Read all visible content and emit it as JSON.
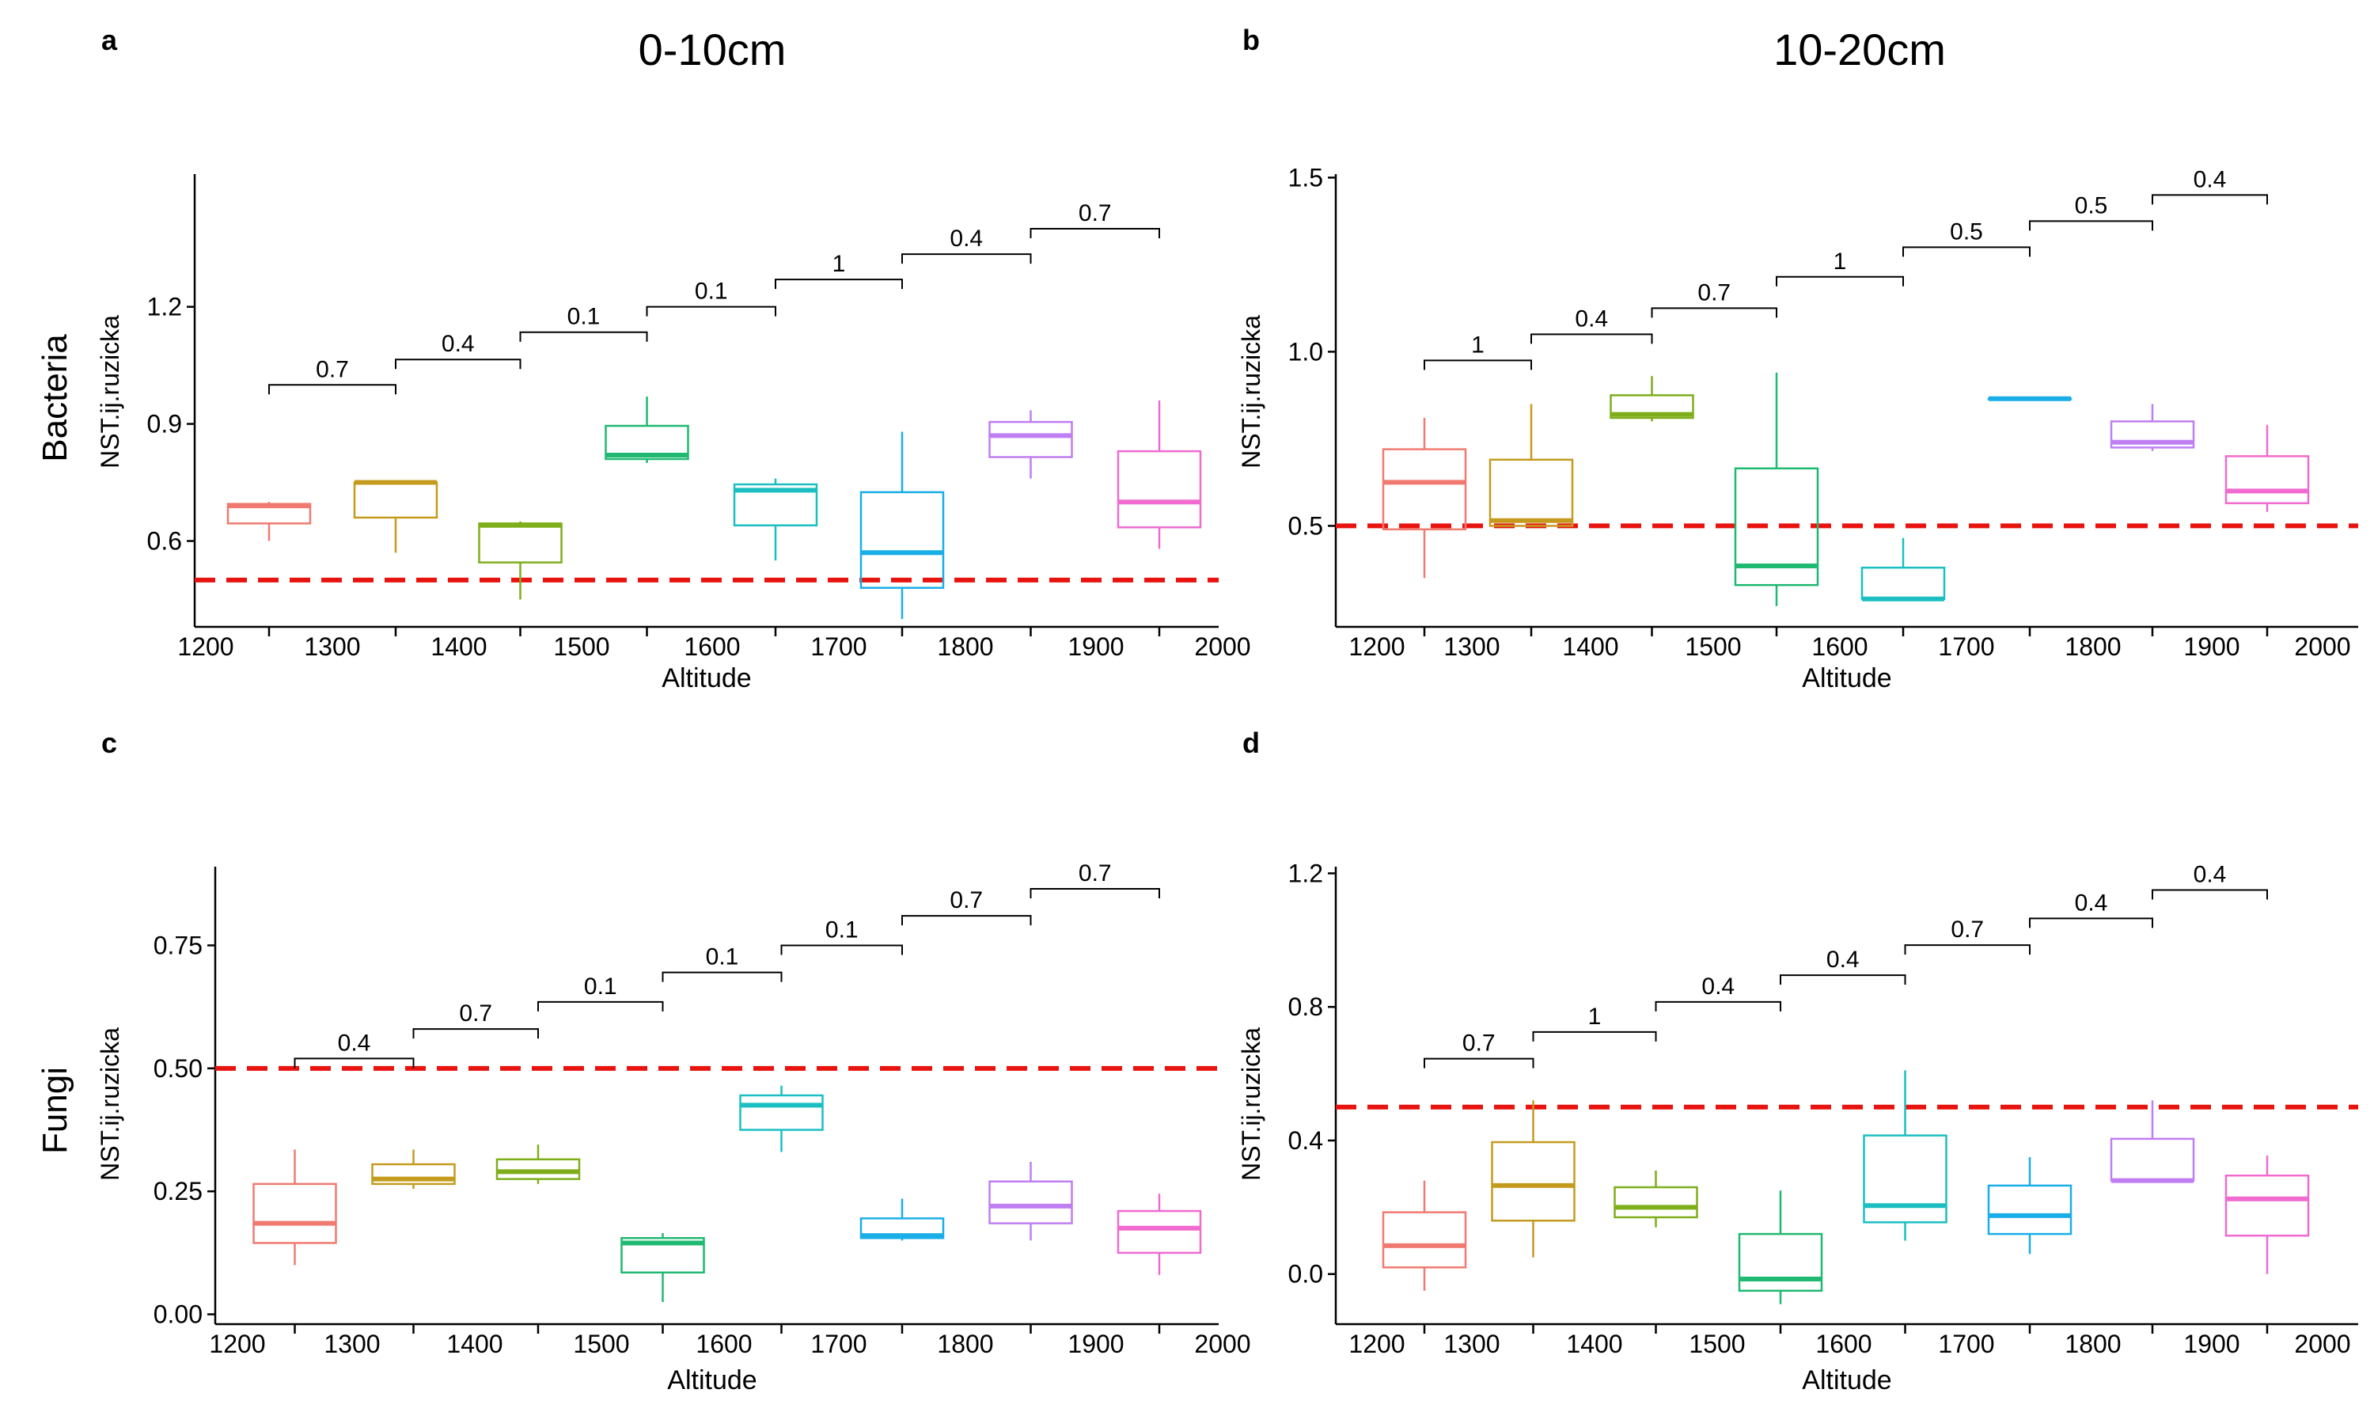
{
  "figure": {
    "column_titles": [
      "0-10cm",
      "10-20cm"
    ],
    "row_titles": [
      "Bacteria",
      "Fungi"
    ],
    "reference_line_color": "#e8130e"
  },
  "chart_data": [
    {
      "panel": "a",
      "type": "boxplot",
      "xlabel": "Altitude",
      "ylabel": "NST.ij.ruzicka",
      "categories": [
        "1200",
        "1300",
        "1400",
        "1500",
        "1600",
        "1700",
        "1800",
        "1900",
        "2000"
      ],
      "ylim": [
        0.38,
        1.54
      ],
      "yticks": [
        0.6,
        0.9,
        1.2
      ],
      "ytick_labels": [
        "0.6",
        "0.9",
        "1.2"
      ],
      "reference_line": 0.5,
      "colors": [
        "#f07a70",
        "#c49b1f",
        "#7fae1b",
        "#1fb971",
        "#1bbfc2",
        "#19aee8",
        "#bf7ef2",
        "#f06ad0"
      ],
      "boxes": [
        {
          "altitude": "1250",
          "min": 0.6,
          "q1": 0.645,
          "median": 0.69,
          "q3": 0.695,
          "max": 0.7
        },
        {
          "altitude": "1350",
          "min": 0.57,
          "q1": 0.66,
          "median": 0.75,
          "q3": 0.75,
          "max": 0.75
        },
        {
          "altitude": "1450",
          "min": 0.45,
          "q1": 0.545,
          "median": 0.64,
          "q3": 0.645,
          "max": 0.65
        },
        {
          "altitude": "1550",
          "min": 0.8,
          "q1": 0.81,
          "median": 0.82,
          "q3": 0.895,
          "max": 0.97
        },
        {
          "altitude": "1650",
          "min": 0.55,
          "q1": 0.64,
          "median": 0.73,
          "q3": 0.745,
          "max": 0.76
        },
        {
          "altitude": "1750",
          "min": 0.4,
          "q1": 0.48,
          "median": 0.57,
          "q3": 0.725,
          "max": 0.88
        },
        {
          "altitude": "1850",
          "min": 0.76,
          "q1": 0.815,
          "median": 0.87,
          "q3": 0.905,
          "max": 0.935
        },
        {
          "altitude": "1950",
          "min": 0.58,
          "q1": 0.635,
          "median": 0.7,
          "q3": 0.83,
          "max": 0.96
        }
      ],
      "comparisons": [
        {
          "from": 0,
          "to": 1,
          "y": 1.0,
          "label": "0.7"
        },
        {
          "from": 1,
          "to": 2,
          "y": 1.065,
          "label": "0.4"
        },
        {
          "from": 2,
          "to": 3,
          "y": 1.135,
          "label": "0.1"
        },
        {
          "from": 3,
          "to": 4,
          "y": 1.2,
          "label": "0.1"
        },
        {
          "from": 4,
          "to": 5,
          "y": 1.27,
          "label": "1"
        },
        {
          "from": 5,
          "to": 6,
          "y": 1.335,
          "label": "0.4"
        },
        {
          "from": 6,
          "to": 7,
          "y": 1.4,
          "label": "0.7"
        }
      ]
    },
    {
      "panel": "b",
      "type": "boxplot",
      "xlabel": "Altitude",
      "ylabel": "NST.ij.ruzicka",
      "categories": [
        "1200",
        "1300",
        "1400",
        "1500",
        "1600",
        "1700",
        "1800",
        "1900",
        "2000"
      ],
      "ylim": [
        0.21,
        1.51
      ],
      "yticks": [
        0.5,
        1.0,
        1.5
      ],
      "ytick_labels": [
        "0.5",
        "1.0",
        "1.5"
      ],
      "reference_line": 0.5,
      "colors": [
        "#f07a70",
        "#c49b1f",
        "#7fae1b",
        "#1fb971",
        "#1bbfc2",
        "#19aee8",
        "#bf7ef2",
        "#f06ad0"
      ],
      "boxes": [
        {
          "altitude": "1250",
          "min": 0.35,
          "q1": 0.49,
          "median": 0.625,
          "q3": 0.72,
          "max": 0.81
        },
        {
          "altitude": "1350",
          "min": 0.5,
          "q1": 0.5,
          "median": 0.515,
          "q3": 0.69,
          "max": 0.85
        },
        {
          "altitude": "1450",
          "min": 0.8,
          "q1": 0.81,
          "median": 0.82,
          "q3": 0.875,
          "max": 0.93
        },
        {
          "altitude": "1550",
          "min": 0.27,
          "q1": 0.33,
          "median": 0.385,
          "q3": 0.665,
          "max": 0.94
        },
        {
          "altitude": "1650",
          "min": 0.29,
          "q1": 0.29,
          "median": 0.29,
          "q3": 0.38,
          "max": 0.465
        },
        {
          "altitude": "1750",
          "min": 0.865,
          "q1": 0.865,
          "median": 0.865,
          "q3": 0.865,
          "max": 0.865
        },
        {
          "altitude": "1850",
          "min": 0.715,
          "q1": 0.725,
          "median": 0.74,
          "q3": 0.8,
          "max": 0.85
        },
        {
          "altitude": "1950",
          "min": 0.54,
          "q1": 0.565,
          "median": 0.6,
          "q3": 0.7,
          "max": 0.79
        }
      ],
      "comparisons": [
        {
          "from": 0,
          "to": 1,
          "y": 0.975,
          "label": "1"
        },
        {
          "from": 1,
          "to": 2,
          "y": 1.05,
          "label": "0.4"
        },
        {
          "from": 2,
          "to": 3,
          "y": 1.125,
          "label": "0.7"
        },
        {
          "from": 3,
          "to": 4,
          "y": 1.215,
          "label": "1"
        },
        {
          "from": 4,
          "to": 5,
          "y": 1.3,
          "label": "0.5"
        },
        {
          "from": 5,
          "to": 6,
          "y": 1.375,
          "label": "0.5"
        },
        {
          "from": 6,
          "to": 7,
          "y": 1.45,
          "label": "0.4"
        }
      ]
    },
    {
      "panel": "c",
      "type": "boxplot",
      "xlabel": "Altitude",
      "ylabel": "NST.ij.ruzicka",
      "categories": [
        "1200",
        "1300",
        "1400",
        "1500",
        "1600",
        "1700",
        "1800",
        "1900",
        "2000"
      ],
      "ylim": [
        -0.02,
        0.91
      ],
      "yticks": [
        0.0,
        0.25,
        0.5,
        0.75
      ],
      "ytick_labels": [
        "0.00",
        "0.25",
        "0.50",
        "0.75"
      ],
      "reference_line": 0.5,
      "colors": [
        "#f07a70",
        "#c49b1f",
        "#7fae1b",
        "#1fb971",
        "#1bbfc2",
        "#19aee8",
        "#bf7ef2",
        "#f06ad0"
      ],
      "boxes": [
        {
          "altitude": "1250",
          "min": 0.1,
          "q1": 0.145,
          "median": 0.185,
          "q3": 0.265,
          "max": 0.335
        },
        {
          "altitude": "1350",
          "min": 0.255,
          "q1": 0.265,
          "median": 0.275,
          "q3": 0.305,
          "max": 0.335
        },
        {
          "altitude": "1450",
          "min": 0.265,
          "q1": 0.275,
          "median": 0.29,
          "q3": 0.315,
          "max": 0.345
        },
        {
          "altitude": "1550",
          "min": 0.025,
          "q1": 0.085,
          "median": 0.145,
          "q3": 0.155,
          "max": 0.165
        },
        {
          "altitude": "1650",
          "min": 0.33,
          "q1": 0.375,
          "median": 0.425,
          "q3": 0.445,
          "max": 0.465
        },
        {
          "altitude": "1750",
          "min": 0.15,
          "q1": 0.155,
          "median": 0.16,
          "q3": 0.195,
          "max": 0.235
        },
        {
          "altitude": "1850",
          "min": 0.15,
          "q1": 0.185,
          "median": 0.22,
          "q3": 0.27,
          "max": 0.31
        },
        {
          "altitude": "1950",
          "min": 0.08,
          "q1": 0.125,
          "median": 0.175,
          "q3": 0.21,
          "max": 0.245
        }
      ],
      "comparisons": [
        {
          "from": 0,
          "to": 1,
          "y": 0.52,
          "label": "0.4"
        },
        {
          "from": 1,
          "to": 2,
          "y": 0.58,
          "label": "0.7"
        },
        {
          "from": 2,
          "to": 3,
          "y": 0.635,
          "label": "0.1"
        },
        {
          "from": 3,
          "to": 4,
          "y": 0.695,
          "label": "0.1"
        },
        {
          "from": 4,
          "to": 5,
          "y": 0.75,
          "label": "0.1"
        },
        {
          "from": 5,
          "to": 6,
          "y": 0.81,
          "label": "0.7"
        },
        {
          "from": 6,
          "to": 7,
          "y": 0.865,
          "label": "0.7"
        }
      ]
    },
    {
      "panel": "d",
      "type": "boxplot",
      "xlabel": "Altitude",
      "ylabel": "NST.ij.ruzicka",
      "categories": [
        "1200",
        "1300",
        "1400",
        "1500",
        "1600",
        "1700",
        "1800",
        "1900",
        "2000"
      ],
      "ylim": [
        -0.15,
        1.22
      ],
      "yticks": [
        0.0,
        0.4,
        0.8,
        1.2
      ],
      "ytick_labels": [
        "0.0",
        "0.4",
        "0.8",
        "1.2"
      ],
      "reference_line": 0.5,
      "colors": [
        "#f07a70",
        "#c49b1f",
        "#7fae1b",
        "#1fb971",
        "#1bbfc2",
        "#19aee8",
        "#bf7ef2",
        "#f06ad0"
      ],
      "boxes": [
        {
          "altitude": "1250",
          "min": -0.05,
          "q1": 0.02,
          "median": 0.085,
          "q3": 0.185,
          "max": 0.28
        },
        {
          "altitude": "1350",
          "min": 0.05,
          "q1": 0.16,
          "median": 0.265,
          "q3": 0.395,
          "max": 0.52
        },
        {
          "altitude": "1450",
          "min": 0.14,
          "q1": 0.17,
          "median": 0.2,
          "q3": 0.26,
          "max": 0.31
        },
        {
          "altitude": "1550",
          "min": -0.09,
          "q1": -0.05,
          "median": -0.015,
          "q3": 0.12,
          "max": 0.25
        },
        {
          "altitude": "1650",
          "min": 0.1,
          "q1": 0.155,
          "median": 0.205,
          "q3": 0.415,
          "max": 0.61
        },
        {
          "altitude": "1750",
          "min": 0.06,
          "q1": 0.12,
          "median": 0.175,
          "q3": 0.265,
          "max": 0.35
        },
        {
          "altitude": "1850",
          "min": 0.28,
          "q1": 0.28,
          "median": 0.28,
          "q3": 0.405,
          "max": 0.52
        },
        {
          "altitude": "1950",
          "min": 0.0,
          "q1": 0.115,
          "median": 0.225,
          "q3": 0.295,
          "max": 0.355
        }
      ],
      "comparisons": [
        {
          "from": 0,
          "to": 1,
          "y": 0.645,
          "label": "0.7"
        },
        {
          "from": 1,
          "to": 2,
          "y": 0.725,
          "label": "1"
        },
        {
          "from": 2,
          "to": 3,
          "y": 0.815,
          "label": "0.4"
        },
        {
          "from": 3,
          "to": 4,
          "y": 0.895,
          "label": "0.4"
        },
        {
          "from": 4,
          "to": 5,
          "y": 0.985,
          "label": "0.7"
        },
        {
          "from": 5,
          "to": 6,
          "y": 1.065,
          "label": "0.4"
        },
        {
          "from": 6,
          "to": 7,
          "y": 1.15,
          "label": "0.4"
        }
      ]
    }
  ]
}
